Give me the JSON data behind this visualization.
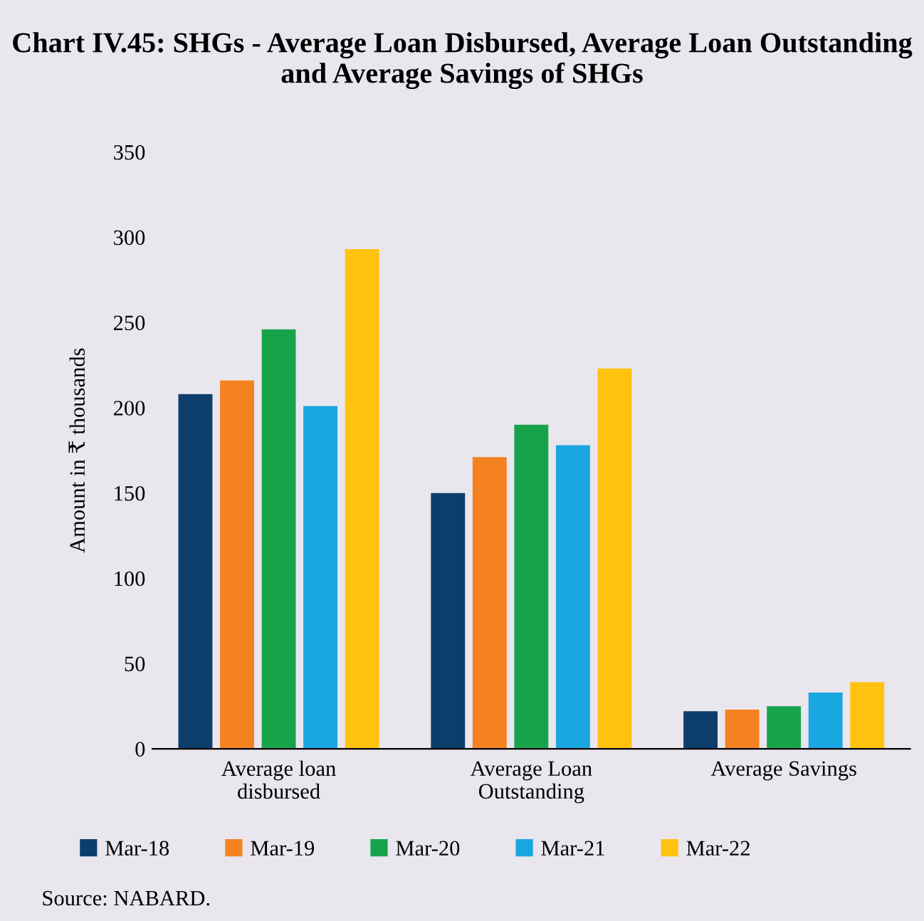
{
  "chart_data": {
    "type": "bar",
    "title": "Chart IV.45: SHGs - Average Loan Disbursed, Average Loan Outstanding and Average Savings of SHGs",
    "ylabel": "Amount in ₹ thousands",
    "categories": [
      "Average loan\ndisbursed",
      "Average Loan\nOutstanding",
      "Average Savings"
    ],
    "series": [
      {
        "name": "Mar-18",
        "color": "#0d3d6b",
        "values": [
          208,
          150,
          22
        ]
      },
      {
        "name": "Mar-19",
        "color": "#f58220",
        "values": [
          216,
          171,
          23
        ]
      },
      {
        "name": "Mar-20",
        "color": "#17a34a",
        "values": [
          246,
          190,
          25
        ]
      },
      {
        "name": "Mar-21",
        "color": "#1aa6e0",
        "values": [
          201,
          178,
          33
        ]
      },
      {
        "name": "Mar-22",
        "color": "#ffc20e",
        "values": [
          293,
          223,
          39
        ]
      }
    ],
    "ylim": [
      0,
      350
    ],
    "yticks": [
      0,
      50,
      100,
      150,
      200,
      250,
      300,
      350
    ],
    "grid": false,
    "legend": "bottom",
    "annotations": [
      "Source: NABARD."
    ]
  }
}
